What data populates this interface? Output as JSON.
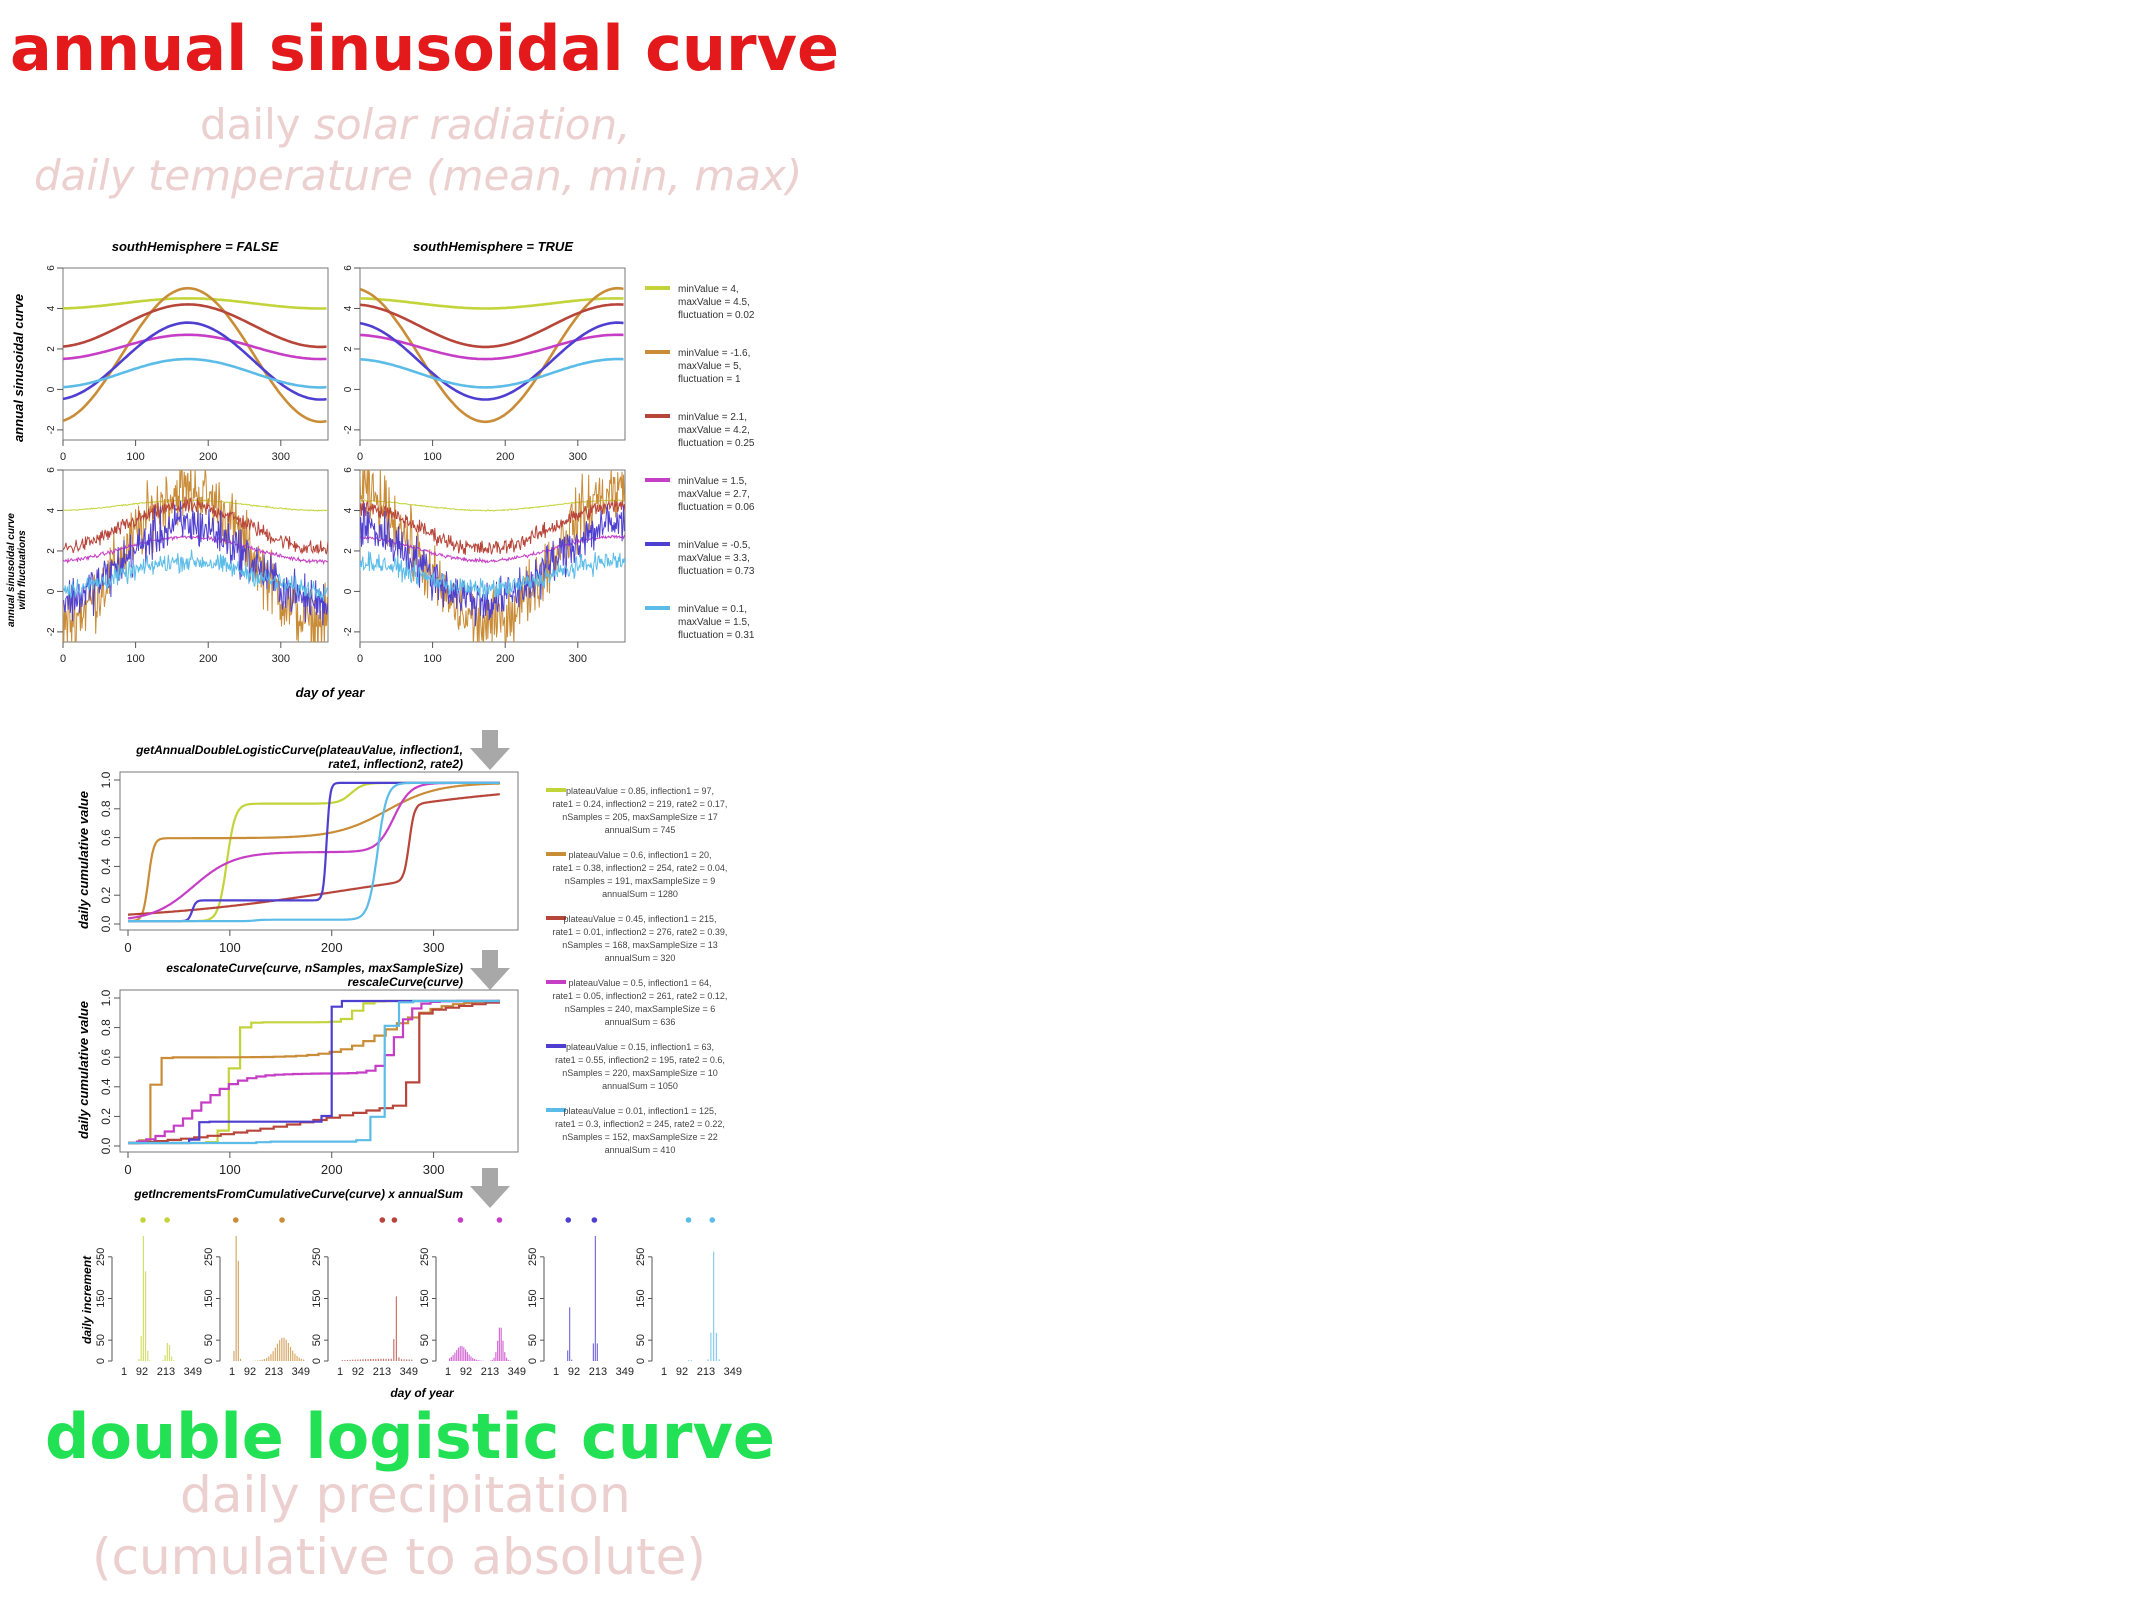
{
  "header": {
    "title": "annual sinusoidal curve",
    "subtitle_line1_plain": "daily ",
    "subtitle_line1_italic": "solar radiation,",
    "subtitle_line2": "daily temperature (mean, min, max)"
  },
  "footer": {
    "title": "double logistic curve",
    "subtitle_line1": "daily precipitation",
    "subtitle_line2": "(cumulative to absolute)"
  },
  "sinusoid_section": {
    "panel_titles": [
      "southHemisphere = FALSE",
      "southHemisphere = TRUE"
    ],
    "ylabel_top": "annual sinusoidal curve",
    "ylabel_bottom_line1": "annual sinusoidal curve",
    "ylabel_bottom_line2": "with fluctuations",
    "xlabel": "day of year",
    "xticks": [
      "0",
      "100",
      "200",
      "300"
    ],
    "yticks": [
      "-2",
      "0",
      "2",
      "4",
      "6"
    ],
    "legend": [
      {
        "color": "#c3d43a",
        "lines": [
          "minValue = 4,",
          "maxValue = 4.5,",
          "fluctuation = 0.02"
        ]
      },
      {
        "color": "#c98c37",
        "lines": [
          "minValue = -1.6,",
          "maxValue = 5,",
          "fluctuation = 1"
        ]
      },
      {
        "color": "#b8453a",
        "lines": [
          "minValue = 2.1,",
          "maxValue = 4.2,",
          "fluctuation = 0.25"
        ]
      },
      {
        "color": "#c63ec6",
        "lines": [
          "minValue = 1.5,",
          "maxValue = 2.7,",
          "fluctuation = 0.06"
        ]
      },
      {
        "color": "#4f3fd0",
        "lines": [
          "minValue = -0.5,",
          "maxValue = 3.3,",
          "fluctuation = 0.73"
        ]
      },
      {
        "color": "#5cbce8",
        "lines": [
          "minValue = 0.1,",
          "maxValue = 1.5,",
          "fluctuation = 0.31"
        ]
      }
    ]
  },
  "logistic_section": {
    "title1_line1": "getAnnualDoubleLogisticCurve(plateauValue, inflection1,",
    "title1_line2": "rate1, inflection2, rate2)",
    "title2_line1": "escalonateCurve(curve, nSamples, maxSampleSize)",
    "title2_line2": "rescaleCurve(curve)",
    "title3": "getIncrementsFromCumulativeCurve(curve) x annualSum",
    "ylabel": "daily cumulative value",
    "xticks": [
      "0",
      "100",
      "200",
      "300"
    ],
    "yticks": [
      "0.0",
      "0.2",
      "0.4",
      "0.6",
      "0.8",
      "1.0"
    ],
    "legend": [
      {
        "color": "#c3d43a",
        "lines": [
          "plateauValue = 0.85, inflection1 = 97,",
          "rate1 = 0.24, inflection2 = 219, rate2 = 0.17,",
          "nSamples = 205, maxSampleSize = 17",
          "annualSum = 745"
        ]
      },
      {
        "color": "#c98c37",
        "lines": [
          "plateauValue = 0.6, inflection1 = 20,",
          "rate1 = 0.38, inflection2 = 254, rate2 = 0.04,",
          "nSamples = 191, maxSampleSize = 9",
          "annualSum = 1280"
        ]
      },
      {
        "color": "#b8453a",
        "lines": [
          "plateauValue = 0.45, inflection1 = 215,",
          "rate1 = 0.01, inflection2 = 276, rate2 = 0.39,",
          "nSamples = 168, maxSampleSize = 13",
          "annualSum = 320"
        ]
      },
      {
        "color": "#c63ec6",
        "lines": [
          "plateauValue = 0.5, inflection1 = 64,",
          "rate1 = 0.05, inflection2 = 261, rate2 = 0.12,",
          "nSamples = 240, maxSampleSize = 6",
          "annualSum = 636"
        ]
      },
      {
        "color": "#4f3fd0",
        "lines": [
          "plateauValue = 0.15, inflection1 = 63,",
          "rate1 = 0.55, inflection2 = 195, rate2 = 0.6,",
          "nSamples = 220, maxSampleSize = 10",
          "annualSum = 1050"
        ]
      },
      {
        "color": "#5cbce8",
        "lines": [
          "plateauValue = 0.01, inflection1 = 125,",
          "rate1 = 0.3, inflection2 = 245, rate2 = 0.22,",
          "nSamples = 152, maxSampleSize = 22",
          "annualSum = 410"
        ]
      }
    ]
  },
  "increment_section": {
    "ylabel": "daily increment",
    "xlabel": "day of year",
    "xticks": [
      "1",
      "92",
      "213",
      "349"
    ],
    "yticks": [
      "0",
      "50",
      "150",
      "250"
    ]
  },
  "chart_data": [
    {
      "type": "line",
      "title": "southHemisphere = FALSE",
      "ylabel": "annual sinusoidal curve",
      "xlim": [
        0,
        365
      ],
      "ylim": [
        -2.5,
        6
      ],
      "peak_day": 172,
      "series": [
        {
          "min": 4,
          "max": 4.5,
          "fluctuation": 0.02
        },
        {
          "min": -1.6,
          "max": 5,
          "fluctuation": 1
        },
        {
          "min": 2.1,
          "max": 4.2,
          "fluctuation": 0.25
        },
        {
          "min": 1.5,
          "max": 2.7,
          "fluctuation": 0.06
        },
        {
          "min": -0.5,
          "max": 3.3,
          "fluctuation": 0.73
        },
        {
          "min": 0.1,
          "max": 1.5,
          "fluctuation": 0.31
        }
      ]
    },
    {
      "type": "line",
      "title": "southHemisphere = TRUE",
      "xlim": [
        0,
        365
      ],
      "ylim": [
        -2.5,
        6
      ],
      "peak_day": 355
    },
    {
      "type": "line",
      "ylabel": "daily cumulative value",
      "xlim": [
        0,
        365
      ],
      "ylim": [
        0,
        1
      ],
      "series": [
        {
          "plateau": 0.85,
          "inflection1": 97,
          "rate1": 0.24,
          "inflection2": 219,
          "rate2": 0.17,
          "nSamples": 205,
          "maxSampleSize": 17,
          "annualSum": 745
        },
        {
          "plateau": 0.6,
          "inflection1": 20,
          "rate1": 0.38,
          "inflection2": 254,
          "rate2": 0.04,
          "nSamples": 191,
          "maxSampleSize": 9,
          "annualSum": 1280
        },
        {
          "plateau": 0.45,
          "inflection1": 215,
          "rate1": 0.01,
          "inflection2": 276,
          "rate2": 0.39,
          "nSamples": 168,
          "maxSampleSize": 13,
          "annualSum": 320
        },
        {
          "plateau": 0.5,
          "inflection1": 64,
          "rate1": 0.05,
          "inflection2": 261,
          "rate2": 0.12,
          "nSamples": 240,
          "maxSampleSize": 6,
          "annualSum": 636
        },
        {
          "plateau": 0.15,
          "inflection1": 63,
          "rate1": 0.55,
          "inflection2": 195,
          "rate2": 0.6,
          "nSamples": 220,
          "maxSampleSize": 10,
          "annualSum": 1050
        },
        {
          "plateau": 0.01,
          "inflection1": 125,
          "rate1": 0.3,
          "inflection2": 245,
          "rate2": 0.22,
          "nSamples": 152,
          "maxSampleSize": 22,
          "annualSum": 410
        }
      ]
    },
    {
      "type": "bar",
      "xlabel": "day of year",
      "ylabel": "daily increment",
      "xlim": [
        1,
        365
      ],
      "ylim": [
        0,
        300
      ]
    }
  ]
}
